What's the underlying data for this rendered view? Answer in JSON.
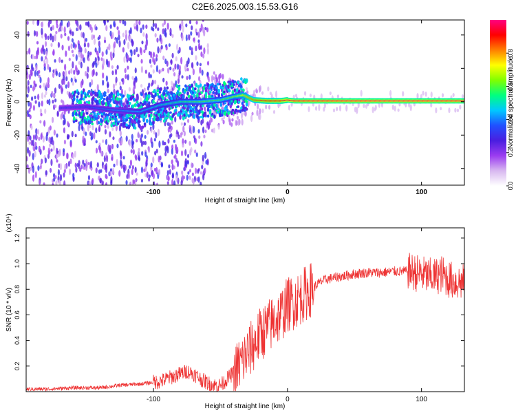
{
  "title": "C2E6.2025.003.15.53.G16",
  "chart_data": [
    {
      "type": "heatmap",
      "xlabel": "Height of straight line (km)",
      "ylabel": "Frequency (Hz)",
      "xlim": [
        -195,
        132
      ],
      "ylim": [
        -50,
        49
      ],
      "xticks": [
        -100,
        0,
        100
      ],
      "yticks": [
        -40,
        -20,
        0,
        20,
        40
      ],
      "colorbar": {
        "label": "Normalized spectral amplitude",
        "range": [
          0,
          1
        ],
        "ticks": [
          "0.0",
          "0.2",
          "0.4",
          "0.6",
          "0.8"
        ],
        "tick_values": [
          0.0,
          0.2,
          0.4,
          0.6,
          0.8
        ],
        "colors": [
          "#ffffff",
          "#d8b8f0",
          "#9b3cf0",
          "#4a1ee0",
          "#2050ff",
          "#00c8ff",
          "#00ff80",
          "#80ff00",
          "#ffff00",
          "#ff8000",
          "#ff0000",
          "#ff0080"
        ]
      },
      "signal_track": {
        "x": [
          -175,
          -150,
          -130,
          -110,
          -95,
          -80,
          -65,
          -50,
          -40,
          -33,
          -25,
          -15,
          -5,
          0,
          5,
          20,
          60,
          100,
          132
        ],
        "y": [
          -4,
          -3,
          -5,
          -6,
          -2,
          0,
          0,
          1,
          3,
          4,
          1,
          0.5,
          0.5,
          1,
          0.5,
          0.5,
          0.5,
          0.5,
          0.5
        ],
        "amplitude": [
          0.3,
          0.35,
          0.4,
          0.45,
          0.5,
          0.55,
          0.6,
          0.6,
          0.65,
          0.75,
          0.85,
          0.9,
          0.92,
          0.95,
          0.95,
          0.96,
          0.97,
          0.97,
          0.96
        ]
      }
    },
    {
      "type": "line",
      "xlabel": "Height of straight line (km)",
      "ylabel": "SNR (10 * v/v)",
      "y_multiplier": "(x10⁴)",
      "xlim": [
        -195,
        132
      ],
      "ylim": [
        0.0,
        1.28
      ],
      "xticks": [
        -100,
        0,
        100
      ],
      "yticks": [
        0.2,
        0.4,
        0.6,
        0.8,
        1.0,
        1.2
      ],
      "color": "#ee3333",
      "series": [
        {
          "x": [
            -195,
            -180,
            -160,
            -140,
            -125,
            -110,
            -95,
            -85,
            -75,
            -70,
            -65,
            -60,
            -55,
            -50,
            -45,
            -40,
            -35,
            -30,
            -25,
            -20,
            -15,
            -10,
            -5,
            0,
            5,
            10,
            15,
            20,
            25,
            30,
            40,
            50,
            60,
            70,
            80,
            90,
            100,
            105,
            110,
            115,
            120,
            125,
            132
          ],
          "y": [
            0.02,
            0.02,
            0.03,
            0.03,
            0.05,
            0.06,
            0.08,
            0.12,
            0.16,
            0.14,
            0.1,
            0.07,
            0.05,
            0.05,
            0.1,
            0.15,
            0.22,
            0.3,
            0.37,
            0.45,
            0.5,
            0.55,
            0.6,
            0.68,
            0.7,
            0.74,
            0.78,
            0.82,
            0.86,
            0.88,
            0.9,
            0.92,
            0.93,
            0.93,
            0.94,
            0.94,
            0.92,
            0.9,
            0.9,
            0.92,
            0.88,
            0.86,
            0.85
          ]
        }
      ]
    }
  ]
}
